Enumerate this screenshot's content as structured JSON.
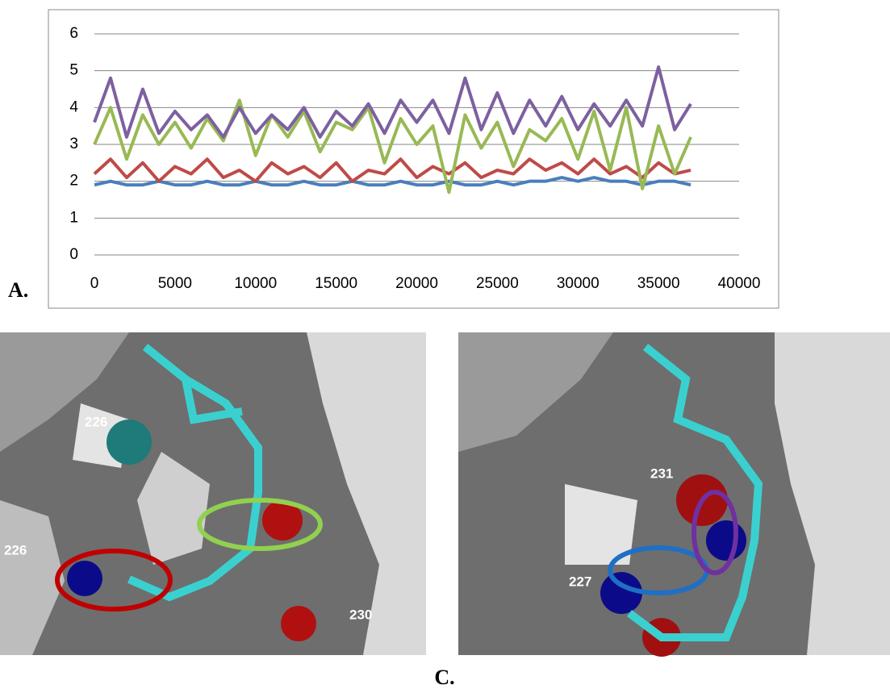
{
  "chart_data": {
    "type": "line",
    "x": [
      0,
      1000,
      2000,
      3000,
      4000,
      5000,
      6000,
      7000,
      8000,
      9000,
      10000,
      11000,
      12000,
      13000,
      14000,
      15000,
      16000,
      17000,
      18000,
      19000,
      20000,
      21000,
      22000,
      23000,
      24000,
      25000,
      26000,
      27000,
      28000,
      29000,
      30000,
      31000,
      32000,
      33000,
      34000,
      35000,
      36000,
      37000
    ],
    "series": [
      {
        "color": "#4a7ebb",
        "values": [
          1.9,
          2.0,
          1.9,
          1.9,
          2.0,
          1.9,
          1.9,
          2.0,
          1.9,
          1.9,
          2.0,
          1.9,
          1.9,
          2.0,
          1.9,
          1.9,
          2.0,
          1.9,
          1.9,
          2.0,
          1.9,
          1.9,
          2.0,
          1.9,
          1.9,
          2.0,
          1.9,
          2.0,
          2.0,
          2.1,
          2.0,
          2.1,
          2.0,
          2.0,
          1.9,
          2.0,
          2.0,
          1.9
        ]
      },
      {
        "color": "#be4b48",
        "values": [
          2.2,
          2.6,
          2.1,
          2.5,
          2.0,
          2.4,
          2.2,
          2.6,
          2.1,
          2.3,
          2.0,
          2.5,
          2.2,
          2.4,
          2.1,
          2.5,
          2.0,
          2.3,
          2.2,
          2.6,
          2.1,
          2.4,
          2.2,
          2.5,
          2.1,
          2.3,
          2.2,
          2.6,
          2.3,
          2.5,
          2.2,
          2.6,
          2.2,
          2.4,
          2.1,
          2.5,
          2.2,
          2.3
        ]
      },
      {
        "color": "#98b954",
        "values": [
          3.0,
          4.0,
          2.6,
          3.8,
          3.0,
          3.6,
          2.9,
          3.7,
          3.1,
          4.2,
          2.7,
          3.8,
          3.2,
          3.9,
          2.8,
          3.6,
          3.4,
          4.0,
          2.5,
          3.7,
          3.0,
          3.5,
          1.7,
          3.8,
          2.9,
          3.6,
          2.4,
          3.4,
          3.1,
          3.7,
          2.6,
          3.9,
          2.3,
          4.0,
          1.8,
          3.5,
          2.2,
          3.2
        ]
      },
      {
        "color": "#7d60a0",
        "values": [
          3.6,
          4.8,
          3.2,
          4.5,
          3.3,
          3.9,
          3.4,
          3.8,
          3.2,
          4.0,
          3.3,
          3.8,
          3.4,
          4.0,
          3.2,
          3.9,
          3.5,
          4.1,
          3.3,
          4.2,
          3.6,
          4.2,
          3.3,
          4.8,
          3.4,
          4.4,
          3.3,
          4.2,
          3.5,
          4.3,
          3.4,
          4.1,
          3.5,
          4.2,
          3.5,
          5.1,
          3.4,
          4.1
        ]
      }
    ],
    "xlim": [
      0,
      40000
    ],
    "xticks": [
      0,
      5000,
      10000,
      15000,
      20000,
      25000,
      30000,
      35000,
      40000
    ],
    "ylim": [
      0,
      6
    ],
    "yticks": [
      0,
      1,
      2,
      3,
      4,
      5,
      6
    ],
    "grid": true
  },
  "panels": {
    "a_label": "A.",
    "c_label": "C."
  },
  "images": [
    {
      "labels": [
        "226",
        "226",
        "230"
      ]
    },
    {
      "labels": [
        "231",
        "227"
      ]
    }
  ]
}
